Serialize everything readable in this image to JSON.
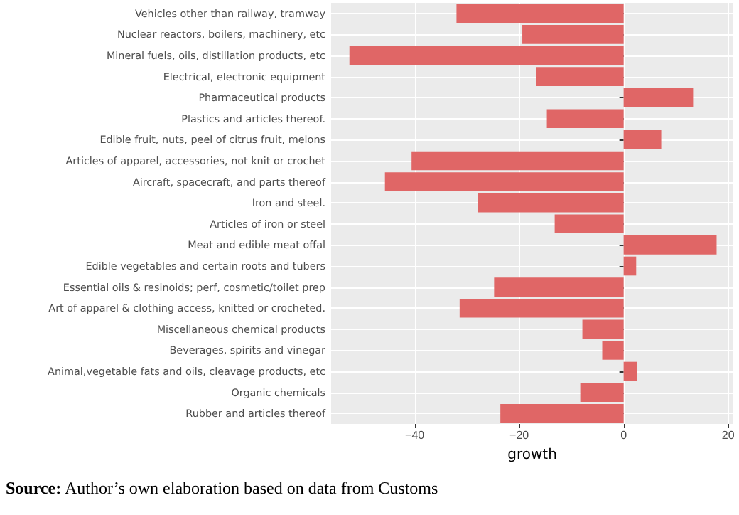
{
  "chart_data": {
    "type": "bar",
    "orientation": "horizontal",
    "xlabel": "growth",
    "categories": [
      "Vehicles other than railway, tramway",
      "Nuclear reactors, boilers, machinery, etc",
      "Mineral fuels, oils, distillation products, etc",
      "Electrical, electronic equipment",
      "Pharmaceutical products",
      "Plastics and articles thereof.",
      "Edible fruit, nuts, peel of citrus fruit, melons",
      "Articles of apparel, accessories, not knit or crochet",
      "Aircraft, spacecraft, and parts thereof",
      "Iron and steel.",
      "Articles of iron or steel",
      "Meat and edible meat offal",
      "Edible vegetables and certain roots and tubers",
      "Essential oils & resinoids; perf, cosmetic/toilet prep",
      "Art of apparel & clothing access, knitted or crocheted.",
      "Miscellaneous chemical products",
      "Beverages, spirits and vinegar",
      "Animal,vegetable fats and oils, cleavage products, etc",
      "Organic chemicals",
      "Rubber and articles thereof"
    ],
    "values": [
      -32.0,
      -19.4,
      -52.5,
      -16.7,
      13.3,
      -14.7,
      7.2,
      -40.6,
      -45.7,
      -27.9,
      -13.2,
      17.8,
      2.4,
      -24.8,
      -31.4,
      -7.9,
      -4.1,
      2.5,
      -8.3,
      -23.6
    ],
    "color": "#e06666",
    "xlim": [
      -56,
      21
    ],
    "xticks": [
      -40,
      -20,
      0,
      20
    ],
    "grid": true,
    "annotations": [
      "Source: Author’s own elaboration based on data from Customs"
    ]
  }
}
